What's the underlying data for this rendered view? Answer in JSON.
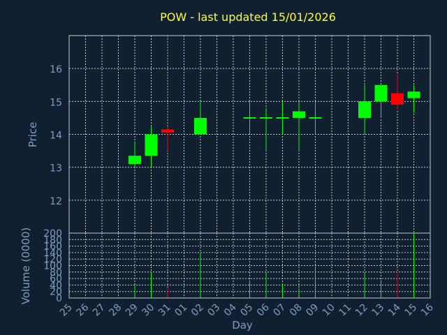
{
  "chart_data": {
    "type": "candlestick",
    "title": "POW - last updated 15/01/2026",
    "ylabel": "Price",
    "volume_label": "Volume (0000)",
    "xlabel": "Day",
    "ylim": [
      11,
      17
    ],
    "yticks": [
      12,
      13,
      14,
      15,
      16
    ],
    "volume_ylim": [
      0,
      200
    ],
    "volume_ticks": [
      0,
      20,
      40,
      60,
      80,
      100,
      120,
      140,
      160,
      180,
      200
    ],
    "x_ticks": [
      "25",
      "26",
      "27",
      "28",
      "29",
      "30",
      "31",
      "01",
      "02",
      "03",
      "04",
      "05",
      "06",
      "07",
      "08",
      "09",
      "10",
      "11",
      "12",
      "13",
      "14",
      "15",
      "16"
    ],
    "candles": [
      {
        "day": "29",
        "open": 13.1,
        "high": 13.75,
        "low": 13.0,
        "close": 13.35,
        "volume": 40
      },
      {
        "day": "30",
        "open": 13.35,
        "high": 14.25,
        "low": 13.0,
        "close": 14.0,
        "volume": 80
      },
      {
        "day": "31",
        "open": 14.15,
        "high": 14.25,
        "low": 13.5,
        "close": 14.05,
        "volume": 30
      },
      {
        "day": "02",
        "open": 14.0,
        "high": 15.0,
        "low": 14.0,
        "close": 14.5,
        "volume": 140
      },
      {
        "day": "05",
        "open": 14.48,
        "high": 15.0,
        "low": 14.0,
        "close": 14.52,
        "volume": 55
      },
      {
        "day": "06",
        "open": 14.48,
        "high": 14.8,
        "low": 13.5,
        "close": 14.52,
        "volume": 80
      },
      {
        "day": "07",
        "open": 14.48,
        "high": 15.0,
        "low": 14.0,
        "close": 14.52,
        "volume": 45
      },
      {
        "day": "08",
        "open": 14.5,
        "high": 15.0,
        "low": 13.5,
        "close": 14.7,
        "volume": 30
      },
      {
        "day": "09",
        "open": 14.48,
        "high": 15.0,
        "low": 14.0,
        "close": 14.52,
        "volume": 95
      },
      {
        "day": "12",
        "open": 14.5,
        "high": 15.5,
        "low": 14.0,
        "close": 15.0,
        "volume": 80
      },
      {
        "day": "13",
        "open": 15.0,
        "high": 15.5,
        "low": 14.5,
        "close": 15.5,
        "volume": 50
      },
      {
        "day": "14",
        "open": 15.25,
        "high": 15.85,
        "low": 14.75,
        "close": 14.9,
        "volume": 80
      },
      {
        "day": "15",
        "open": 15.1,
        "high": 15.5,
        "low": 14.65,
        "close": 15.3,
        "volume": 200
      }
    ],
    "colors": {
      "up": "#00ff00",
      "down": "#ff0000",
      "background": "#102030",
      "text": "#7f9fc0",
      "title": "#ffff33"
    },
    "grid": true
  }
}
